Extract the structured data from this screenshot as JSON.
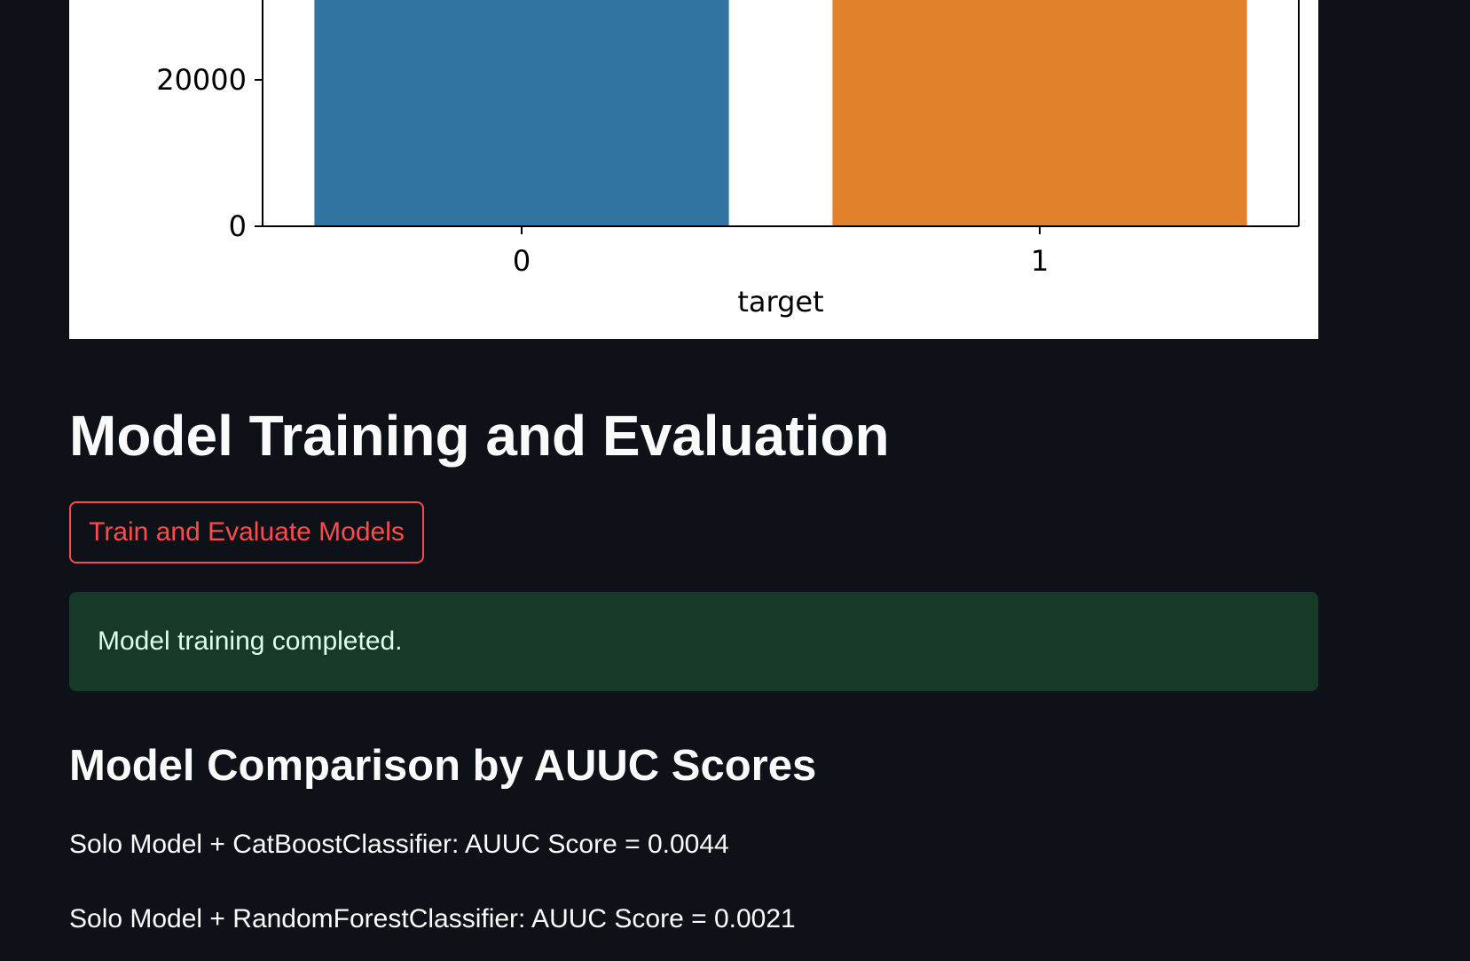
{
  "chart_data": {
    "type": "bar",
    "categories": [
      "0",
      "1"
    ],
    "values": [
      null,
      null
    ],
    "colors": [
      "#3274a1",
      "#e1812c"
    ],
    "xlabel": "target",
    "ylabel": "",
    "y_ticks": [
      0,
      20000
    ],
    "y_tick_labels": [
      "0",
      "20000"
    ],
    "x_tick_labels": [
      "0",
      "1"
    ],
    "visible_ylim": [
      0,
      30000
    ],
    "grid": false,
    "note_cropped": true
  },
  "section": {
    "title": "Model Training and Evaluation"
  },
  "actions": {
    "train_button_label": "Train and Evaluate Models"
  },
  "alert": {
    "text": "Model training completed.",
    "color": "#173928"
  },
  "comparison": {
    "title": "Model Comparison by AUUC Scores",
    "results": [
      "Solo Model + CatBoostClassifier: AUUC Score = 0.0044",
      "Solo Model + RandomForestClassifier: AUUC Score = 0.0021"
    ]
  },
  "theme": {
    "background": "#0e1117",
    "accent": "#ff4b4b"
  }
}
